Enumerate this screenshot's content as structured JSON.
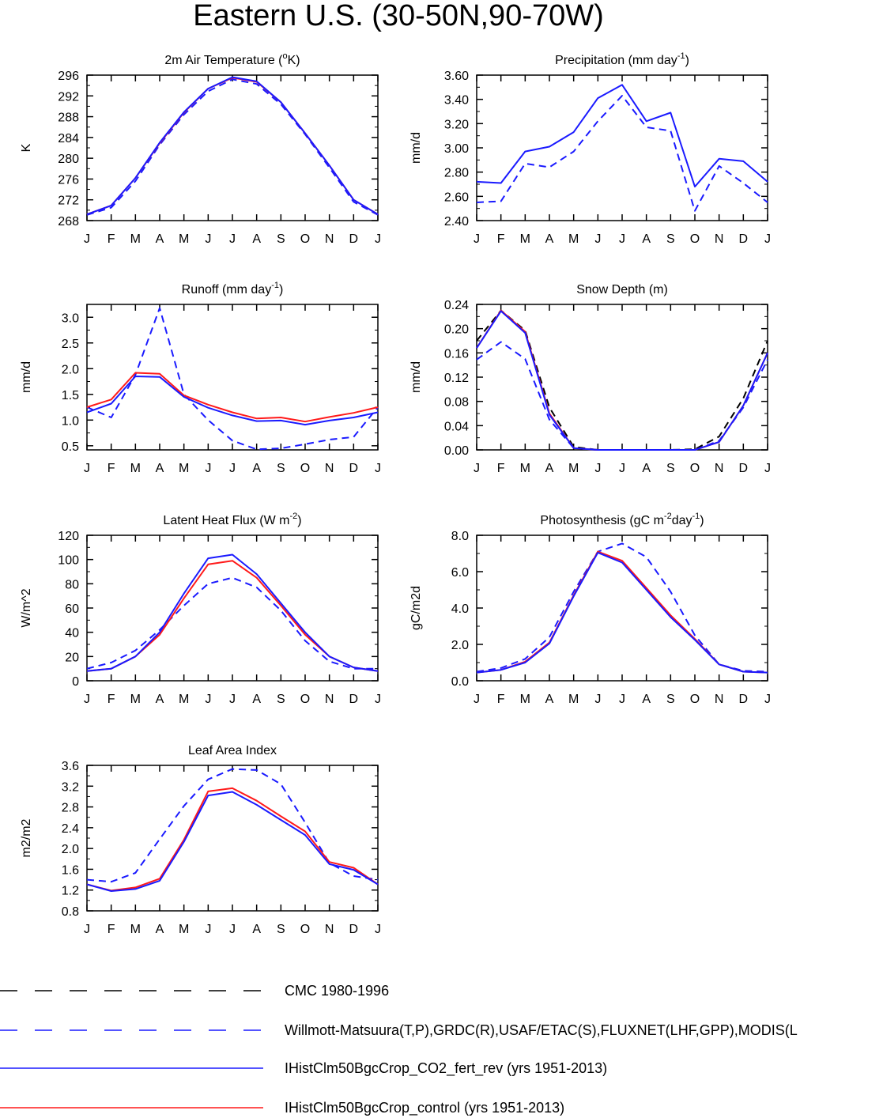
{
  "page_title": "Eastern U.S. (30-50N,90-70W)",
  "colors": {
    "cmc": "#000000",
    "obs": "#1a1aff",
    "co2_fert_rev": "#1a1aff",
    "control": "#ff1a1a"
  },
  "legend": [
    {
      "label": "CMC 1980-1996",
      "color": "#000000",
      "style": "dashed"
    },
    {
      "label": "Willmott-Matsuura(T,P),GRDC(R),USAF/ETAC(S),FLUXNET(LHF,GPP),MODIS(L",
      "color": "#1a1aff",
      "style": "dashed"
    },
    {
      "label": "IHistClm50BgcCrop_CO2_fert_rev (yrs 1951-2013)",
      "color": "#1a1aff",
      "style": "solid"
    },
    {
      "label": "IHistClm50BgcCrop_control (yrs 1951-2013)",
      "color": "#ff1a1a",
      "style": "solid"
    }
  ],
  "chart_data": [
    {
      "type": "line",
      "title": "2m Air Temperature (",
      "title_sup": "o",
      "title_after": "K)",
      "ylabel": "K",
      "xlabel": "",
      "x": [
        "J",
        "F",
        "M",
        "A",
        "M",
        "J",
        "J",
        "A",
        "S",
        "O",
        "N",
        "D",
        "J"
      ],
      "ylim": [
        268,
        296
      ],
      "yticks": [
        "268",
        "272",
        "276",
        "280",
        "284",
        "288",
        "292",
        "296"
      ],
      "series": [
        {
          "style": "dashed",
          "color": "#1a1aff",
          "values": [
            269.1,
            270.5,
            275.6,
            282.6,
            288.4,
            292.9,
            295.2,
            294.3,
            290.4,
            284.6,
            278.2,
            271.6,
            269.1
          ]
        },
        {
          "style": "solid",
          "color": "#ff1a1a",
          "values": [
            269.2,
            270.9,
            276.2,
            282.9,
            288.8,
            293.4,
            295.5,
            294.7,
            290.8,
            284.8,
            278.6,
            272.0,
            269.2
          ]
        },
        {
          "style": "solid",
          "color": "#1a1aff",
          "values": [
            269.2,
            270.9,
            276.2,
            283.0,
            288.9,
            293.4,
            295.6,
            294.8,
            290.8,
            284.8,
            278.6,
            272.0,
            269.2
          ]
        }
      ]
    },
    {
      "type": "line",
      "title": "Precipitation (mm day",
      "title_sup": "-1",
      "title_after": ")",
      "ylabel": "mm/d",
      "xlabel": "",
      "x": [
        "J",
        "F",
        "M",
        "A",
        "M",
        "J",
        "J",
        "A",
        "S",
        "O",
        "N",
        "D",
        "J"
      ],
      "ylim": [
        2.4,
        3.6
      ],
      "yticks": [
        "2.40",
        "2.60",
        "2.80",
        "3.00",
        "3.20",
        "3.40",
        "3.60"
      ],
      "series": [
        {
          "style": "dashed",
          "color": "#1a1aff",
          "values": [
            2.55,
            2.56,
            2.87,
            2.84,
            2.97,
            3.22,
            3.43,
            3.17,
            3.14,
            2.48,
            2.85,
            2.71,
            2.55
          ]
        },
        {
          "style": "solid",
          "color": "#1a1aff",
          "values": [
            2.72,
            2.71,
            2.97,
            3.01,
            3.13,
            3.41,
            3.52,
            3.22,
            3.29,
            2.68,
            2.91,
            2.89,
            2.72
          ]
        }
      ]
    },
    {
      "type": "line",
      "title": "Runoff (mm day",
      "title_sup": "-1",
      "title_after": ")",
      "ylabel": "mm/d",
      "xlabel": "",
      "x": [
        "J",
        "F",
        "M",
        "A",
        "M",
        "J",
        "J",
        "A",
        "S",
        "O",
        "N",
        "D",
        "J"
      ],
      "ylim": [
        0.42,
        3.25
      ],
      "yticks": [
        "0.5",
        "1.0",
        "1.5",
        "2.0",
        "2.5",
        "3.0"
      ],
      "series": [
        {
          "style": "dashed",
          "color": "#1a1aff",
          "values": [
            1.25,
            1.05,
            1.88,
            3.18,
            1.5,
            1.0,
            0.6,
            0.43,
            0.45,
            0.53,
            0.62,
            0.67,
            1.25
          ]
        },
        {
          "style": "solid",
          "color": "#ff1a1a",
          "values": [
            1.25,
            1.4,
            1.92,
            1.9,
            1.48,
            1.3,
            1.15,
            1.03,
            1.05,
            0.97,
            1.06,
            1.14,
            1.25
          ]
        },
        {
          "style": "solid",
          "color": "#1a1aff",
          "values": [
            1.15,
            1.32,
            1.85,
            1.84,
            1.45,
            1.24,
            1.09,
            0.98,
            0.99,
            0.91,
            0.99,
            1.05,
            1.15
          ]
        }
      ]
    },
    {
      "type": "line",
      "title": "Snow Depth (m)",
      "title_sup": "",
      "title_after": "",
      "ylabel": "mm/d",
      "xlabel": "",
      "x": [
        "J",
        "F",
        "M",
        "A",
        "M",
        "J",
        "J",
        "A",
        "S",
        "O",
        "N",
        "D",
        "J"
      ],
      "ylim": [
        0.0,
        0.24
      ],
      "yticks": [
        "0.00",
        "0.04",
        "0.08",
        "0.12",
        "0.16",
        "0.20",
        "0.24"
      ],
      "series": [
        {
          "style": "dashed",
          "color": "#000000",
          "values": [
            0.18,
            0.23,
            0.197,
            0.07,
            0.005,
            0.0,
            0.0,
            0.0,
            0.0,
            0.001,
            0.022,
            0.085,
            0.18
          ]
        },
        {
          "style": "dashed",
          "color": "#1a1aff",
          "values": [
            0.149,
            0.178,
            0.15,
            0.05,
            0.003,
            0.0,
            0.0,
            0.0,
            0.0,
            0.0,
            0.015,
            0.07,
            0.149
          ]
        },
        {
          "style": "solid",
          "color": "#ff1a1a",
          "values": [
            0.168,
            0.23,
            0.195,
            0.06,
            0.003,
            0.0,
            0.0,
            0.0,
            0.0,
            0.0,
            0.013,
            0.073,
            0.16
          ]
        },
        {
          "style": "solid",
          "color": "#1a1aff",
          "values": [
            0.168,
            0.229,
            0.193,
            0.058,
            0.003,
            0.0,
            0.0,
            0.0,
            0.0,
            0.0,
            0.013,
            0.073,
            0.16
          ]
        }
      ]
    },
    {
      "type": "line",
      "title": "Latent Heat Flux (W m",
      "title_sup": "-2",
      "title_after": ")",
      "ylabel": "W/m^2",
      "xlabel": "",
      "x": [
        "J",
        "F",
        "M",
        "A",
        "M",
        "J",
        "J",
        "A",
        "S",
        "O",
        "N",
        "D",
        "J"
      ],
      "ylim": [
        0,
        120
      ],
      "yticks": [
        "0",
        "20",
        "40",
        "60",
        "80",
        "100",
        "120"
      ],
      "series": [
        {
          "style": "dashed",
          "color": "#1a1aff",
          "values": [
            10,
            15,
            25,
            42,
            62,
            80,
            85,
            77,
            58,
            33,
            16,
            10,
            10
          ]
        },
        {
          "style": "solid",
          "color": "#ff1a1a",
          "values": [
            8,
            10,
            20,
            38,
            68,
            96,
            99,
            85,
            62,
            38,
            20,
            11,
            8
          ]
        },
        {
          "style": "solid",
          "color": "#1a1aff",
          "values": [
            8,
            10,
            20,
            40,
            72,
            101,
            104,
            88,
            64,
            40,
            20,
            11,
            8
          ]
        }
      ]
    },
    {
      "type": "line",
      "title": "Photosynthesis (gC m",
      "title_sup": "-2",
      "title_after": "day",
      "title_sup2": "-1",
      "title_after2": ")",
      "ylabel": "gC/m2d",
      "xlabel": "",
      "x": [
        "J",
        "F",
        "M",
        "A",
        "M",
        "J",
        "J",
        "A",
        "S",
        "O",
        "N",
        "D",
        "J"
      ],
      "ylim": [
        0.0,
        8.0
      ],
      "yticks": [
        "0.0",
        "2.0",
        "4.0",
        "6.0",
        "8.0"
      ],
      "series": [
        {
          "style": "dashed",
          "color": "#1a1aff",
          "values": [
            0.5,
            0.7,
            1.2,
            2.4,
            4.9,
            7.1,
            7.55,
            6.8,
            4.9,
            2.5,
            0.9,
            0.55,
            0.5
          ]
        },
        {
          "style": "solid",
          "color": "#ff1a1a",
          "values": [
            0.45,
            0.6,
            1.05,
            2.1,
            4.7,
            7.1,
            6.6,
            5.1,
            3.6,
            2.3,
            0.9,
            0.5,
            0.45
          ]
        },
        {
          "style": "solid",
          "color": "#1a1aff",
          "values": [
            0.45,
            0.6,
            1.0,
            2.05,
            4.65,
            7.05,
            6.5,
            5.0,
            3.5,
            2.25,
            0.9,
            0.5,
            0.45
          ]
        }
      ]
    },
    {
      "type": "line",
      "title": "Leaf Area Index",
      "title_sup": "",
      "title_after": "",
      "ylabel": "m2/m2",
      "xlabel": "",
      "x": [
        "J",
        "F",
        "M",
        "A",
        "M",
        "J",
        "J",
        "A",
        "S",
        "O",
        "N",
        "D",
        "J"
      ],
      "ylim": [
        0.8,
        3.6
      ],
      "yticks": [
        "0.8",
        "1.2",
        "1.6",
        "2.0",
        "2.4",
        "2.8",
        "3.2",
        "3.6"
      ],
      "series": [
        {
          "style": "dashed",
          "color": "#1a1aff",
          "values": [
            1.4,
            1.36,
            1.53,
            2.18,
            2.82,
            3.33,
            3.53,
            3.51,
            3.24,
            2.5,
            1.72,
            1.47,
            1.4
          ]
        },
        {
          "style": "solid",
          "color": "#ff1a1a",
          "values": [
            1.31,
            1.19,
            1.25,
            1.42,
            2.17,
            3.1,
            3.16,
            2.92,
            2.62,
            2.33,
            1.74,
            1.63,
            1.31
          ]
        },
        {
          "style": "solid",
          "color": "#1a1aff",
          "values": [
            1.31,
            1.18,
            1.22,
            1.38,
            2.13,
            3.02,
            3.09,
            2.84,
            2.55,
            2.26,
            1.7,
            1.59,
            1.31
          ]
        }
      ]
    }
  ]
}
